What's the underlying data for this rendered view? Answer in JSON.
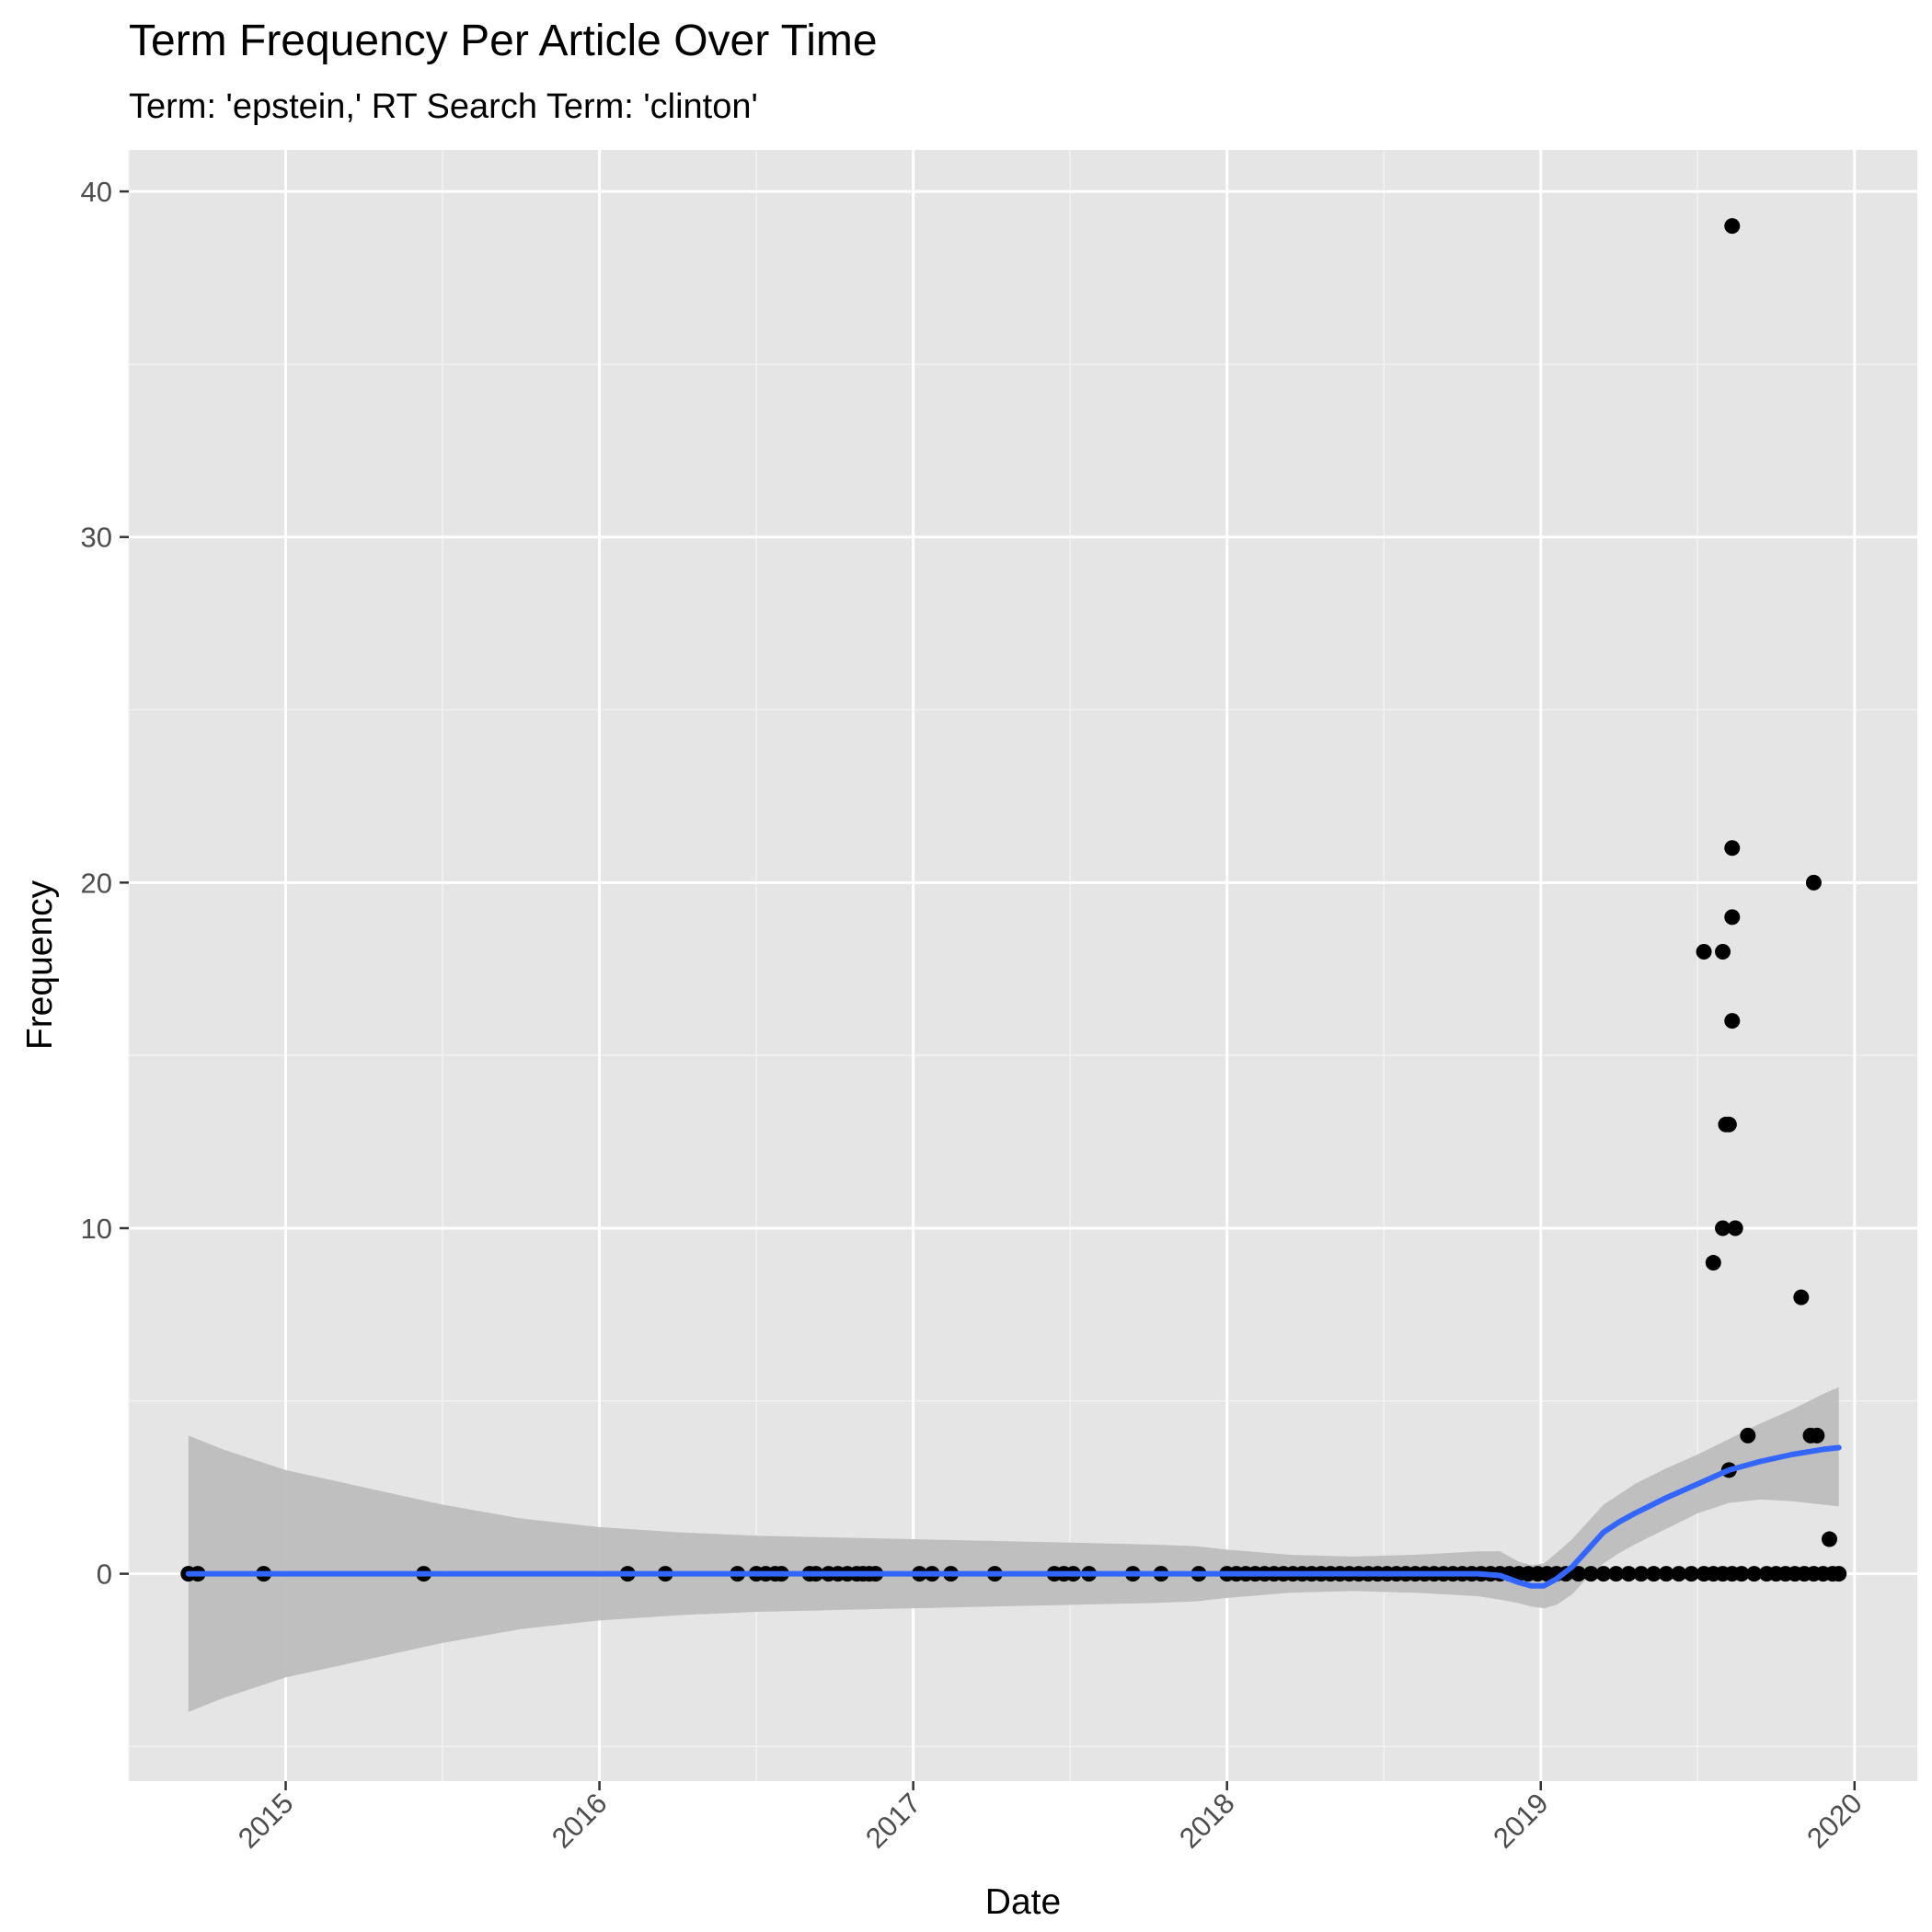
{
  "chart_data": {
    "type": "scatter",
    "title": "Term Frequency Per Article Over Time",
    "subtitle": "Term: 'epstein,' RT Search Term: 'clinton'",
    "xlabel": "Date",
    "ylabel": "Frequency",
    "xlim": [
      2014.5,
      2020.2
    ],
    "ylim": [
      -6,
      41.2
    ],
    "x_ticks": [
      {
        "value": 2015,
        "label": "2015"
      },
      {
        "value": 2016,
        "label": "2016"
      },
      {
        "value": 2017,
        "label": "2017"
      },
      {
        "value": 2018,
        "label": "2018"
      },
      {
        "value": 2019,
        "label": "2019"
      },
      {
        "value": 2020,
        "label": "2020"
      }
    ],
    "y_ticks": [
      {
        "value": 0,
        "label": "0"
      },
      {
        "value": 10,
        "label": "10"
      },
      {
        "value": 20,
        "label": "20"
      },
      {
        "value": 30,
        "label": "30"
      },
      {
        "value": 40,
        "label": "40"
      }
    ],
    "grid": true,
    "points": {
      "name": "articles",
      "color": "#000000",
      "x": [
        2014.69,
        2014.72,
        2014.93,
        2015.44,
        2016.09,
        2016.21,
        2016.44,
        2016.5,
        2016.53,
        2016.56,
        2016.58,
        2016.67,
        2016.69,
        2016.73,
        2016.76,
        2016.79,
        2016.82,
        2016.84,
        2016.86,
        2016.88,
        2017.02,
        2017.06,
        2017.12,
        2017.26,
        2017.45,
        2017.48,
        2017.51,
        2017.56,
        2017.7,
        2017.79,
        2017.91,
        2018.0,
        2018.03,
        2018.06,
        2018.09,
        2018.12,
        2018.15,
        2018.18,
        2018.21,
        2018.24,
        2018.27,
        2018.3,
        2018.33,
        2018.36,
        2018.39,
        2018.42,
        2018.45,
        2018.48,
        2018.51,
        2018.54,
        2018.57,
        2018.6,
        2018.63,
        2018.66,
        2018.69,
        2018.72,
        2018.75,
        2018.78,
        2018.81,
        2018.84,
        2018.87,
        2018.9,
        2018.93,
        2018.96,
        2018.99,
        2019.02,
        2019.05,
        2019.08,
        2019.12,
        2019.16,
        2019.2,
        2019.24,
        2019.28,
        2019.32,
        2019.36,
        2019.4,
        2019.44,
        2019.48,
        2019.52,
        2019.55,
        2019.58,
        2019.61,
        2019.64,
        2019.68,
        2019.72,
        2019.75,
        2019.78,
        2019.81,
        2019.84,
        2019.87,
        2019.9,
        2019.93,
        2019.95,
        2019.52,
        2019.55,
        2019.58,
        2019.58,
        2019.59,
        2019.6,
        2019.6,
        2019.61,
        2019.61,
        2019.61,
        2019.61,
        2019.62,
        2019.66,
        2019.83,
        2019.86,
        2019.87,
        2019.88,
        2019.92
      ],
      "y": [
        0,
        0,
        0,
        0,
        0,
        0,
        0,
        0,
        0,
        0,
        0,
        0,
        0,
        0,
        0,
        0,
        0,
        0,
        0,
        0,
        0,
        0,
        0,
        0,
        0,
        0,
        0,
        0,
        0,
        0,
        0,
        0,
        0,
        0,
        0,
        0,
        0,
        0,
        0,
        0,
        0,
        0,
        0,
        0,
        0,
        0,
        0,
        0,
        0,
        0,
        0,
        0,
        0,
        0,
        0,
        0,
        0,
        0,
        0,
        0,
        0,
        0,
        0,
        0,
        0,
        0,
        0,
        0,
        0,
        0,
        0,
        0,
        0,
        0,
        0,
        0,
        0,
        0,
        0,
        0,
        0,
        0,
        0,
        0,
        0,
        0,
        0,
        0,
        0,
        0,
        0,
        0,
        0,
        18,
        9,
        18,
        10,
        13,
        3,
        13,
        19,
        21,
        39,
        16,
        10,
        4,
        8,
        4,
        20,
        4,
        1
      ]
    },
    "smooth": {
      "name": "loess fit",
      "color": "#3366ff",
      "band_color": "#bdbdbd",
      "x": [
        2014.69,
        2014.8,
        2015.0,
        2015.25,
        2015.5,
        2015.75,
        2016.0,
        2016.25,
        2016.5,
        2016.75,
        2017.0,
        2017.25,
        2017.5,
        2017.75,
        2017.9,
        2018.0,
        2018.2,
        2018.4,
        2018.6,
        2018.8,
        2018.87,
        2018.93,
        2018.97,
        2019.01,
        2019.05,
        2019.1,
        2019.15,
        2019.2,
        2019.25,
        2019.3,
        2019.4,
        2019.5,
        2019.6,
        2019.7,
        2019.8,
        2019.9,
        2019.95
      ],
      "fit": [
        0,
        0,
        0,
        0,
        0,
        0,
        0,
        0,
        0,
        0,
        0,
        0,
        0,
        0,
        0,
        0,
        0,
        0,
        0,
        0,
        -0.05,
        -0.25,
        -0.35,
        -0.35,
        -0.15,
        0.2,
        0.7,
        1.2,
        1.5,
        1.75,
        2.2,
        2.6,
        3.0,
        3.25,
        3.45,
        3.6,
        3.65
      ],
      "lower": [
        -4.0,
        -3.6,
        -3.0,
        -2.5,
        -2.0,
        -1.6,
        -1.35,
        -1.2,
        -1.1,
        -1.05,
        -1.0,
        -0.95,
        -0.9,
        -0.85,
        -0.8,
        -0.7,
        -0.55,
        -0.5,
        -0.55,
        -0.65,
        -0.75,
        -0.85,
        -0.95,
        -1.0,
        -0.9,
        -0.6,
        -0.1,
        0.3,
        0.6,
        0.85,
        1.3,
        1.75,
        2.05,
        2.15,
        2.1,
        2.0,
        1.95
      ],
      "upper": [
        4.0,
        3.6,
        3.0,
        2.5,
        2.0,
        1.6,
        1.35,
        1.2,
        1.1,
        1.05,
        1.0,
        0.95,
        0.9,
        0.85,
        0.8,
        0.7,
        0.55,
        0.5,
        0.55,
        0.65,
        0.65,
        0.35,
        0.25,
        0.3,
        0.6,
        1.0,
        1.5,
        2.0,
        2.3,
        2.6,
        3.05,
        3.45,
        3.9,
        4.35,
        4.75,
        5.2,
        5.4
      ]
    }
  }
}
